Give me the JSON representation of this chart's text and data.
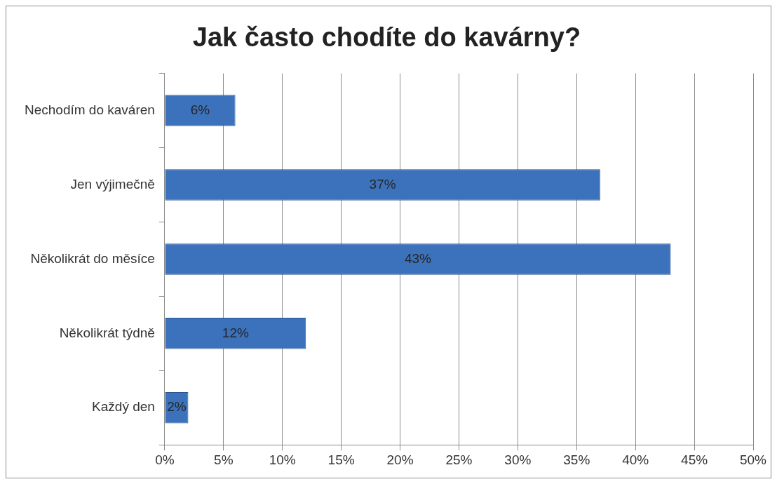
{
  "chart_data": {
    "type": "bar",
    "orientation": "horizontal",
    "title": "Jak často chodíte do kavárny?",
    "categories": [
      "Nechodím do kaváren",
      "Jen výjimečně",
      "Několikrát do měsíce",
      "Několikrát týdně",
      "Každý den"
    ],
    "values": [
      6,
      37,
      43,
      12,
      2
    ],
    "value_labels": [
      "6%",
      "37%",
      "43%",
      "12%",
      "2%"
    ],
    "color": "#3b72bb",
    "xlim": [
      0,
      50
    ],
    "xticks": [
      {
        "value": 0,
        "label": "0%"
      },
      {
        "value": 5,
        "label": "5%"
      },
      {
        "value": 10,
        "label": "10%"
      },
      {
        "value": 15,
        "label": "15%"
      },
      {
        "value": 20,
        "label": "20%"
      },
      {
        "value": 25,
        "label": "25%"
      },
      {
        "value": 30,
        "label": "30%"
      },
      {
        "value": 35,
        "label": "35%"
      },
      {
        "value": 40,
        "label": "40%"
      },
      {
        "value": 45,
        "label": "45%"
      },
      {
        "value": 50,
        "label": "50%"
      }
    ],
    "grid": "x"
  }
}
